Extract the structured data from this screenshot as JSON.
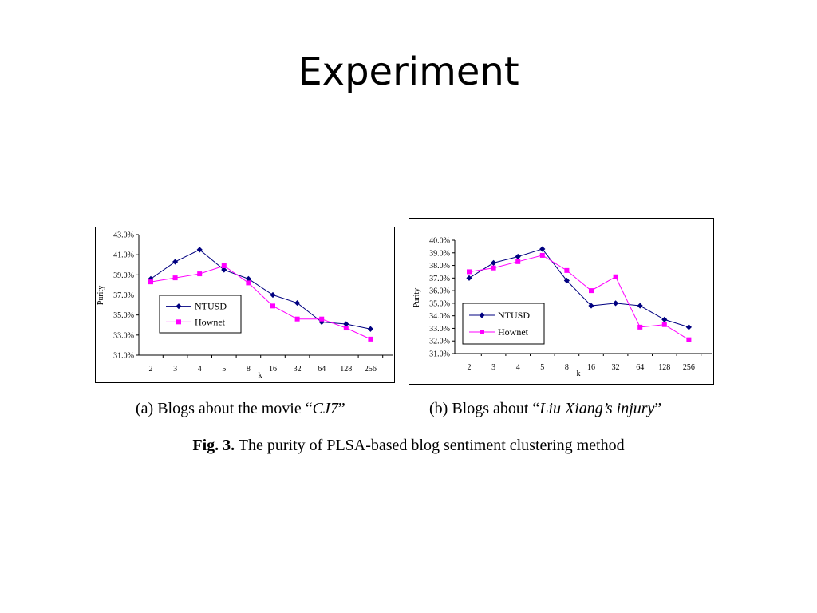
{
  "slide": {
    "title": "Experiment"
  },
  "chart_data": [
    {
      "type": "line",
      "categories": [
        "2",
        "3",
        "4",
        "5",
        "8",
        "16",
        "32",
        "64",
        "128",
        "256"
      ],
      "xlabel": "k",
      "ylabel": "Purity",
      "ylim": [
        31.0,
        43.0
      ],
      "yticks": [
        "31.0%",
        "33.0%",
        "35.0%",
        "37.0%",
        "39.0%",
        "41.0%",
        "43.0%"
      ],
      "ytick_values": [
        31.0,
        33.0,
        35.0,
        37.0,
        39.0,
        41.0,
        43.0
      ],
      "grid": false,
      "legend_position": "left",
      "series": [
        {
          "name": "NTUSD",
          "values": [
            38.6,
            40.3,
            41.5,
            39.5,
            38.6,
            37.0,
            36.2,
            34.3,
            34.1,
            33.6
          ],
          "color": "#000080",
          "marker": "diamond"
        },
        {
          "name": "Hownet",
          "values": [
            38.3,
            38.7,
            39.1,
            39.9,
            38.2,
            35.9,
            34.6,
            34.6,
            33.7,
            32.6
          ],
          "color": "#ff00ff",
          "marker": "square"
        }
      ],
      "caption": {
        "prefix": "(a) Blogs about the movie “",
        "italic": "CJ7",
        "suffix": "”"
      }
    },
    {
      "type": "line",
      "categories": [
        "2",
        "3",
        "4",
        "5",
        "8",
        "16",
        "32",
        "64",
        "128",
        "256"
      ],
      "xlabel": "k",
      "ylabel": "Purity",
      "ylim": [
        31.0,
        40.0
      ],
      "yticks": [
        "31.0%",
        "32.0%",
        "33.0%",
        "34.0%",
        "35.0%",
        "36.0%",
        "37.0%",
        "38.0%",
        "39.0%",
        "40.0%"
      ],
      "ytick_values": [
        31.0,
        32.0,
        33.0,
        34.0,
        35.0,
        36.0,
        37.0,
        38.0,
        39.0,
        40.0
      ],
      "grid": false,
      "legend_position": "left",
      "series": [
        {
          "name": "NTUSD",
          "values": [
            37.0,
            38.2,
            38.7,
            39.3,
            36.8,
            34.8,
            35.0,
            34.8,
            33.7,
            33.1
          ],
          "color": "#000080",
          "marker": "diamond"
        },
        {
          "name": "Hownet",
          "values": [
            37.5,
            37.8,
            38.3,
            38.8,
            37.6,
            36.0,
            37.1,
            33.1,
            33.3,
            32.1
          ],
          "color": "#ff00ff",
          "marker": "square"
        }
      ],
      "caption": {
        "prefix": "(b) Blogs about “",
        "italic": "Liu Xiang’s injury",
        "suffix": "”"
      }
    }
  ],
  "figure_caption": {
    "label": "Fig. 3.",
    "text": " The purity of PLSA-based blog sentiment clustering method"
  }
}
